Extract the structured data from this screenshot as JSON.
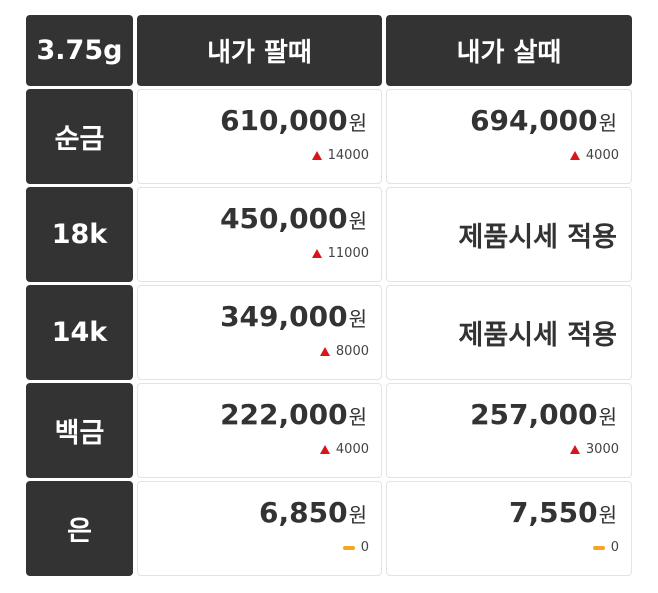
{
  "header": [
    "3.75g",
    "내가 팔때",
    "내가 살때"
  ],
  "unit": "원",
  "rows": [
    {
      "label": "순금",
      "cells": [
        {
          "price": "610,000",
          "change": 14000
        },
        {
          "price": "694,000",
          "change": 4000
        }
      ]
    },
    {
      "label": "18k",
      "cells": [
        {
          "price": "450,000",
          "change": 11000
        },
        {
          "text": "제품시세 적용"
        }
      ]
    },
    {
      "label": "14k",
      "cells": [
        {
          "price": "349,000",
          "change": 8000
        },
        {
          "text": "제품시세 적용"
        }
      ]
    },
    {
      "label": "백금",
      "cells": [
        {
          "price": "222,000",
          "change": 4000
        },
        {
          "price": "257,000",
          "change": 3000
        }
      ]
    },
    {
      "label": "은",
      "cells": [
        {
          "price": "6,850",
          "change": 0
        },
        {
          "price": "7,550",
          "change": 0
        }
      ]
    }
  ]
}
